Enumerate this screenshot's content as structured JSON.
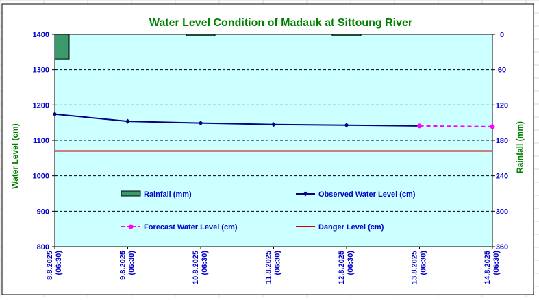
{
  "chart_data": {
    "type": "line",
    "title": "Water Level Condition of Madauk at Sittoung River",
    "ylabel": "Water Level (cm)",
    "y2label": "Rainfall (mm)",
    "ylim": [
      800,
      1400
    ],
    "yticks": [
      800,
      900,
      1000,
      1100,
      1200,
      1300,
      1400
    ],
    "y2lim": [
      0,
      360
    ],
    "y2ticks": [
      0,
      60,
      120,
      180,
      240,
      300,
      360
    ],
    "y2_inverted": true,
    "categories": [
      [
        "8.8.2025",
        "(06:30)"
      ],
      [
        "9.8.2025",
        "(06:30)"
      ],
      [
        "10.8.2025",
        "(06:30)"
      ],
      [
        "11.8.2025",
        "(06:30)"
      ],
      [
        "12.8.2025",
        "(06:30)"
      ],
      [
        "13.8.2025",
        "(06:30)"
      ],
      [
        "14.8.2025",
        "(06:30)"
      ]
    ],
    "series": [
      {
        "name": "Rainfall (mm)",
        "type": "bar",
        "axis": "right",
        "color": "#3b9a6b",
        "values": [
          42,
          null,
          2,
          null,
          2,
          null,
          null
        ]
      },
      {
        "name": "Observed Water Level (cm)",
        "type": "line",
        "marker": "diamond",
        "color": "#000080",
        "values": [
          1174,
          1154,
          1149,
          1145,
          1143,
          1141,
          null
        ]
      },
      {
        "name": "Forecast Water Level (cm)",
        "type": "line",
        "style": "dashed",
        "marker": "circle",
        "color": "#ff00ff",
        "values": [
          null,
          null,
          null,
          null,
          null,
          1141,
          1139
        ]
      },
      {
        "name": "Danger Level (cm)",
        "type": "line",
        "color": "#cc0000",
        "values": [
          1070,
          1070,
          1070,
          1070,
          1070,
          1070,
          1070
        ]
      }
    ],
    "grid": true,
    "legend_position": "inside-bottom"
  },
  "colors": {
    "title": "#008000",
    "axis_text": "#0000cc",
    "plot_background": "#ccffff",
    "frame": "#000000"
  }
}
